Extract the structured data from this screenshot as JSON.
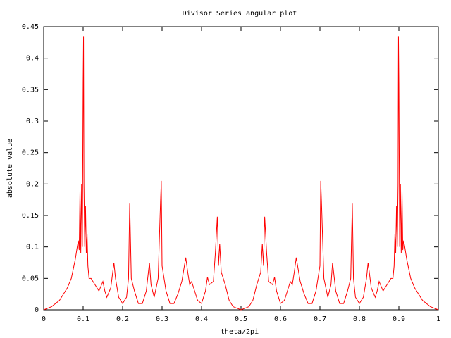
{
  "chart_data": {
    "type": "line",
    "title": "Divisor Series angular plot",
    "xlabel": "theta/2pi",
    "ylabel": "absolute value",
    "color": "#ff0000",
    "xlim": [
      0,
      1
    ],
    "ylim": [
      0,
      0.45
    ],
    "xticks": [
      0,
      0.1,
      0.2,
      0.3,
      0.4,
      0.5,
      0.6,
      0.7,
      0.8,
      0.9,
      1
    ],
    "yticks": [
      0,
      0.05,
      0.1,
      0.15,
      0.2,
      0.25,
      0.3,
      0.35,
      0.4,
      0.45
    ],
    "grid": false,
    "x": [
      0,
      0.02,
      0.04,
      0.06,
      0.07,
      0.08,
      0.085,
      0.088,
      0.09,
      0.092,
      0.094,
      0.096,
      0.098,
      0.1,
      0.101,
      0.102,
      0.104,
      0.106,
      0.108,
      0.11,
      0.112,
      0.115,
      0.12,
      0.13,
      0.14,
      0.15,
      0.155,
      0.16,
      0.17,
      0.178,
      0.182,
      0.19,
      0.2,
      0.21,
      0.215,
      0.218,
      0.222,
      0.23,
      0.24,
      0.25,
      0.26,
      0.268,
      0.272,
      0.28,
      0.29,
      0.296,
      0.298,
      0.3,
      0.305,
      0.31,
      0.32,
      0.33,
      0.34,
      0.35,
      0.36,
      0.365,
      0.37,
      0.375,
      0.38,
      0.39,
      0.4,
      0.41,
      0.415,
      0.42,
      0.43,
      0.435,
      0.44,
      0.443,
      0.446,
      0.45,
      0.455,
      0.46,
      0.47,
      0.48,
      0.5,
      0.52,
      0.53,
      0.54,
      0.545,
      0.55,
      0.554,
      0.557,
      0.56,
      0.565,
      0.57,
      0.58,
      0.585,
      0.59,
      0.6,
      0.61,
      0.62,
      0.625,
      0.63,
      0.635,
      0.64,
      0.65,
      0.66,
      0.67,
      0.68,
      0.69,
      0.695,
      0.7,
      0.702,
      0.704,
      0.71,
      0.72,
      0.728,
      0.732,
      0.74,
      0.75,
      0.76,
      0.77,
      0.778,
      0.782,
      0.785,
      0.79,
      0.8,
      0.81,
      0.818,
      0.822,
      0.83,
      0.84,
      0.845,
      0.85,
      0.86,
      0.87,
      0.88,
      0.885,
      0.888,
      0.89,
      0.892,
      0.894,
      0.896,
      0.898,
      0.899,
      0.9,
      0.902,
      0.904,
      0.906,
      0.908,
      0.91,
      0.912,
      0.915,
      0.92,
      0.93,
      0.94,
      0.96,
      0.98,
      1
    ],
    "values": [
      0,
      0.005,
      0.015,
      0.035,
      0.05,
      0.08,
      0.1,
      0.11,
      0.095,
      0.19,
      0.09,
      0.2,
      0.1,
      0.36,
      0.435,
      0.2,
      0.1,
      0.165,
      0.09,
      0.12,
      0.07,
      0.05,
      0.05,
      0.04,
      0.03,
      0.045,
      0.03,
      0.02,
      0.035,
      0.075,
      0.05,
      0.02,
      0.01,
      0.02,
      0.05,
      0.17,
      0.05,
      0.03,
      0.01,
      0.01,
      0.03,
      0.075,
      0.04,
      0.02,
      0.05,
      0.17,
      0.205,
      0.07,
      0.05,
      0.03,
      0.01,
      0.01,
      0.025,
      0.045,
      0.083,
      0.06,
      0.04,
      0.045,
      0.035,
      0.015,
      0.01,
      0.03,
      0.052,
      0.04,
      0.045,
      0.09,
      0.148,
      0.07,
      0.105,
      0.06,
      0.05,
      0.04,
      0.015,
      0.005,
      0,
      0.005,
      0.015,
      0.04,
      0.05,
      0.06,
      0.105,
      0.07,
      0.148,
      0.09,
      0.045,
      0.04,
      0.052,
      0.03,
      0.01,
      0.015,
      0.035,
      0.045,
      0.04,
      0.06,
      0.083,
      0.045,
      0.025,
      0.01,
      0.01,
      0.03,
      0.05,
      0.07,
      0.205,
      0.17,
      0.05,
      0.02,
      0.04,
      0.075,
      0.03,
      0.01,
      0.01,
      0.03,
      0.05,
      0.17,
      0.05,
      0.02,
      0.01,
      0.02,
      0.05,
      0.075,
      0.035,
      0.02,
      0.03,
      0.045,
      0.03,
      0.04,
      0.05,
      0.05,
      0.07,
      0.12,
      0.09,
      0.165,
      0.1,
      0.2,
      0.435,
      0.36,
      0.1,
      0.2,
      0.09,
      0.19,
      0.095,
      0.11,
      0.1,
      0.08,
      0.05,
      0.035,
      0.015,
      0.005,
      0
    ]
  }
}
